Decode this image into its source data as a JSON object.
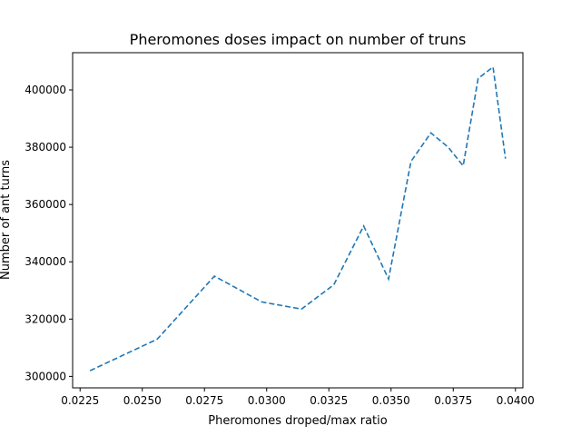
{
  "chart_data": {
    "type": "line",
    "title": "Pheromones doses impact on number of truns",
    "xlabel": "Pheromones droped/max ratio",
    "ylabel": "Number of ant turns",
    "xlim": [
      0.0222,
      0.0403
    ],
    "ylim": [
      296000,
      413000
    ],
    "x_ticks": [
      0.0225,
      0.025,
      0.0275,
      0.03,
      0.0325,
      0.035,
      0.0375,
      0.04
    ],
    "x_tick_labels": [
      "0.0225",
      "0.0250",
      "0.0275",
      "0.0300",
      "0.0325",
      "0.0350",
      "0.0375",
      "0.0400"
    ],
    "y_ticks": [
      300000,
      320000,
      340000,
      360000,
      380000,
      400000
    ],
    "y_tick_labels": [
      "300000",
      "320000",
      "340000",
      "360000",
      "380000",
      "400000"
    ],
    "grid": false,
    "line_color": "#1f77b4",
    "line_style": "dashed",
    "series": [
      {
        "x": [
          0.0229,
          0.0256,
          0.0279,
          0.0298,
          0.0314,
          0.0327,
          0.0339,
          0.0349,
          0.0358,
          0.0366,
          0.0373,
          0.0379,
          0.0385,
          0.0391,
          0.0396
        ],
        "y": [
          302000,
          313000,
          335000,
          326000,
          323500,
          332000,
          352500,
          334000,
          375000,
          385000,
          380000,
          373500,
          404000,
          408000,
          376000
        ]
      }
    ]
  }
}
